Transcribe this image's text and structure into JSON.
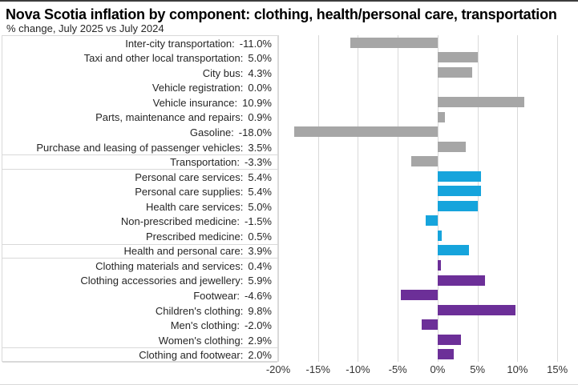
{
  "header": {
    "title": "Nova Scotia inflation by component: clothing, health/personal care, transportation",
    "subtitle": "% change, July 2025 vs July 2024"
  },
  "colors": {
    "transportation": "#a6a6a6",
    "health_personal_care": "#16a4dc",
    "clothing": "#6c2f98",
    "gridline": "#d9d9d9",
    "label_box_border": "#d9d9d9",
    "text": "#262626"
  },
  "chart_data": {
    "type": "bar",
    "orientation": "horizontal",
    "title": "Nova Scotia inflation by component: clothing, health/personal care, transportation",
    "subtitle": "% change, July 2025 vs July 2024",
    "xlabel": "",
    "ylabel": "",
    "xlim": [
      -20,
      17.4
    ],
    "grid": true,
    "legend": false,
    "x_ticks": [
      {
        "value": -20,
        "label": "-20%"
      },
      {
        "value": -15,
        "label": "-15%"
      },
      {
        "value": -10,
        "label": "-10%"
      },
      {
        "value": -5,
        "label": "-5%"
      },
      {
        "value": 0,
        "label": "0%"
      },
      {
        "value": 5,
        "label": "5%"
      },
      {
        "value": 10,
        "label": "10%"
      },
      {
        "value": 15,
        "label": "15%"
      }
    ],
    "rows": [
      {
        "label": "Inter-city transportation",
        "value": -11.0,
        "display": "-11.0%",
        "group": "transportation",
        "aggregate": false
      },
      {
        "label": "Taxi and other local transportation",
        "value": 5.0,
        "display": "5.0%",
        "group": "transportation",
        "aggregate": false
      },
      {
        "label": "City bus",
        "value": 4.3,
        "display": "4.3%",
        "group": "transportation",
        "aggregate": false
      },
      {
        "label": "Vehicle registration",
        "value": 0.0,
        "display": "0.0%",
        "group": "transportation",
        "aggregate": false
      },
      {
        "label": "Vehicle insurance",
        "value": 10.9,
        "display": "10.9%",
        "group": "transportation",
        "aggregate": false
      },
      {
        "label": "Parts, maintenance and repairs",
        "value": 0.9,
        "display": "0.9%",
        "group": "transportation",
        "aggregate": false
      },
      {
        "label": "Gasoline",
        "value": -18.0,
        "display": "-18.0%",
        "group": "transportation",
        "aggregate": false
      },
      {
        "label": "Purchase and leasing of passenger vehicles",
        "value": 3.5,
        "display": "3.5%",
        "group": "transportation",
        "aggregate": false
      },
      {
        "label": "Transportation",
        "value": -3.3,
        "display": "-3.3%",
        "group": "transportation",
        "aggregate": true
      },
      {
        "label": "Personal care services",
        "value": 5.4,
        "display": "5.4%",
        "group": "health_personal_care",
        "aggregate": false
      },
      {
        "label": "Personal care supplies",
        "value": 5.4,
        "display": "5.4%",
        "group": "health_personal_care",
        "aggregate": false
      },
      {
        "label": "Health care services",
        "value": 5.0,
        "display": "5.0%",
        "group": "health_personal_care",
        "aggregate": false
      },
      {
        "label": "Non-prescribed medicine",
        "value": -1.5,
        "display": "-1.5%",
        "group": "health_personal_care",
        "aggregate": false
      },
      {
        "label": "Prescribed medicine",
        "value": 0.5,
        "display": "0.5%",
        "group": "health_personal_care",
        "aggregate": false
      },
      {
        "label": "Health and personal care",
        "value": 3.9,
        "display": "3.9%",
        "group": "health_personal_care",
        "aggregate": true
      },
      {
        "label": "Clothing materials and services",
        "value": 0.4,
        "display": "0.4%",
        "group": "clothing",
        "aggregate": false
      },
      {
        "label": "Clothing accessories and jewellery",
        "value": 5.9,
        "display": "5.9%",
        "group": "clothing",
        "aggregate": false
      },
      {
        "label": "Footwear",
        "value": -4.6,
        "display": "-4.6%",
        "group": "clothing",
        "aggregate": false
      },
      {
        "label": "Children's clothing",
        "value": 9.8,
        "display": "9.8%",
        "group": "clothing",
        "aggregate": false
      },
      {
        "label": "Men's clothing",
        "value": -2.0,
        "display": "-2.0%",
        "group": "clothing",
        "aggregate": false
      },
      {
        "label": "Women's clothing",
        "value": 2.9,
        "display": "2.9%",
        "group": "clothing",
        "aggregate": false
      },
      {
        "label": "Clothing and footwear",
        "value": 2.0,
        "display": "2.0%",
        "group": "clothing",
        "aggregate": true
      }
    ]
  }
}
